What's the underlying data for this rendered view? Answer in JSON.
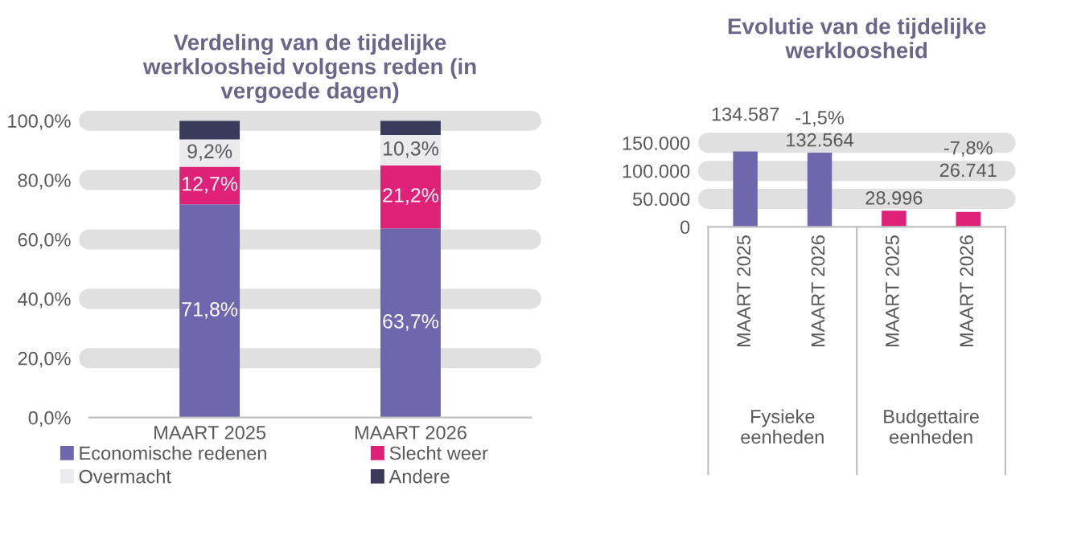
{
  "chart_data": [
    {
      "type": "bar",
      "title": "Verdeling van de tijdelijke werkloosheid volgens reden (in vergoede dagen)",
      "stacked": true,
      "categories": [
        "MAART 2025",
        "MAART 2026"
      ],
      "series": [
        {
          "name": "Economische redenen",
          "color": "#6e67ae",
          "values": [
            71.8,
            63.7
          ],
          "value_labels": [
            "71,8%",
            "63,7%"
          ]
        },
        {
          "name": "Slecht weer",
          "color": "#e0217a",
          "values": [
            12.7,
            21.2
          ],
          "value_labels": [
            "12,7%",
            "21,2%"
          ]
        },
        {
          "name": "Overmacht",
          "color": "#ebebee",
          "values": [
            9.2,
            10.3
          ],
          "value_labels": [
            "9,2%",
            "10,3%"
          ]
        },
        {
          "name": "Andere",
          "color": "#3a3a5c",
          "values": [
            6.3,
            4.8
          ],
          "value_labels": [
            null,
            null
          ]
        }
      ],
      "ylim": [
        0,
        100
      ],
      "yticks": [
        {
          "value": 0,
          "label": "0,0%"
        },
        {
          "value": 20,
          "label": "20,0%"
        },
        {
          "value": 40,
          "label": "40,0%"
        },
        {
          "value": 60,
          "label": "60,0%"
        },
        {
          "value": 80,
          "label": "80,0%"
        },
        {
          "value": 100,
          "label": "100,0%"
        }
      ],
      "grid": "y",
      "legend": "bottom"
    },
    {
      "type": "bar",
      "title": "Evolutie van de tijdelijke werkloosheid",
      "categories": [
        "MAART 2025",
        "MAART 2026",
        "MAART 2025",
        "MAART 2026"
      ],
      "values": [
        134587,
        132564,
        28996,
        26741
      ],
      "colors": [
        "#6e67ae",
        "#6e67ae",
        "#e0217a",
        "#e0217a"
      ],
      "value_labels": [
        "134.587",
        "132.564",
        "28.996",
        "26.741"
      ],
      "ylim": [
        0,
        150000
      ],
      "yticks": [
        {
          "value": 0,
          "label": "0"
        },
        {
          "value": 50000,
          "label": "50.000"
        },
        {
          "value": 100000,
          "label": "100.000"
        },
        {
          "value": 150000,
          "label": "150.000"
        }
      ],
      "grid": "y",
      "annotations": [
        "-1,5%",
        "-7,8%",
        "Fysieke eenheden",
        "Budgettaire eenheden"
      ]
    }
  ]
}
